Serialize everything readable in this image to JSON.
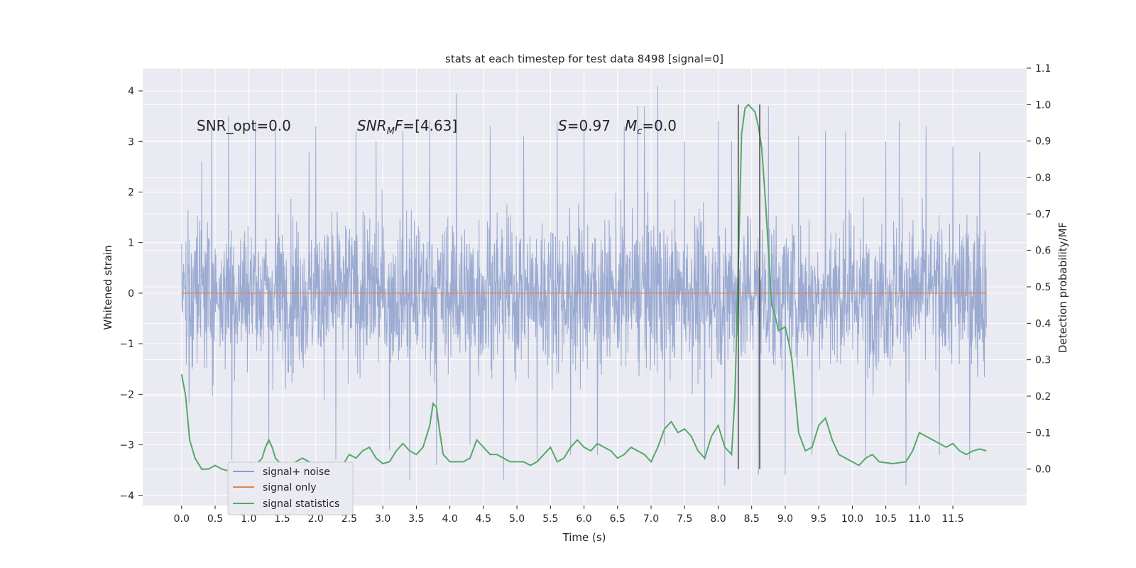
{
  "chart_data": {
    "type": "line",
    "title": "stats at each timestep for test data 8498 [signal=0]",
    "xlabel": "Time (s)",
    "ylabel": "Whitened strain",
    "y2label": "Detection probability/MF",
    "xlim": [
      -0.58,
      12.6
    ],
    "ylim": [
      -4.2,
      4.45
    ],
    "y2lim": [
      -0.1,
      1.1
    ],
    "x_ticks": [
      0.0,
      0.5,
      1.0,
      1.5,
      2.0,
      2.5,
      3.0,
      3.5,
      4.0,
      4.5,
      5.0,
      5.5,
      6.0,
      6.5,
      7.0,
      7.5,
      8.0,
      8.5,
      9.0,
      9.5,
      10.0,
      10.5,
      11.0,
      11.5
    ],
    "x_tick_labels": [
      "0.0",
      "0.5",
      "1.0",
      "1.5",
      "2.0",
      "2.5",
      "3.0",
      "3.5",
      "4.0",
      "4.5",
      "5.0",
      "5.5",
      "6.0",
      "6.5",
      "7.0",
      "7.5",
      "8.0",
      "8.5",
      "9.0",
      "9.5",
      "10.0",
      "10.5",
      "11.0",
      "11.5"
    ],
    "y_ticks": [
      4,
      3,
      2,
      1,
      0,
      -1,
      -2,
      -3,
      -4
    ],
    "y_tick_labels": [
      "4",
      "3",
      "2",
      "1",
      "0",
      "−1",
      "−2",
      "−3",
      "−4"
    ],
    "y2_ticks": [
      1.1,
      1.0,
      0.9,
      0.8,
      0.7,
      0.6,
      0.5,
      0.4,
      0.3,
      0.2,
      0.1,
      0.0
    ],
    "y2_tick_labels": [
      "1.1",
      "1.0",
      "0.9",
      "0.8",
      "0.7",
      "0.6",
      "0.5",
      "0.4",
      "0.3",
      "0.2",
      "0.1",
      "0.0"
    ],
    "grid": true,
    "legend_position": "lower-left",
    "colors": {
      "noise": "#8c9fcb",
      "signal_only": "#dd8452",
      "statistics": "#55a868",
      "vline": "#444444",
      "background": "#eaeaf2"
    },
    "annotations": {
      "snr_opt": "SNR_opt=0.0",
      "snr_mf": "[4.63]",
      "s_value": "=0.97",
      "mc_value": "=0.0"
    },
    "series": [
      {
        "name": "signal+ noise",
        "axis": "left",
        "x_range": [
          0.0,
          12.0
        ],
        "envelope_typical": [
          -1.6,
          1.6
        ],
        "peaks": [
          [
            0.3,
            2.6
          ],
          [
            0.45,
            3.3
          ],
          [
            0.7,
            3.5
          ],
          [
            0.75,
            -3.3
          ],
          [
            1.1,
            3.4
          ],
          [
            1.3,
            -3.0
          ],
          [
            1.4,
            3.3
          ],
          [
            1.9,
            2.8
          ],
          [
            2.0,
            3.3
          ],
          [
            2.3,
            -3.3
          ],
          [
            2.6,
            3.2
          ],
          [
            2.9,
            3.0
          ],
          [
            3.1,
            -3.1
          ],
          [
            3.3,
            3.2
          ],
          [
            3.4,
            -3.7
          ],
          [
            3.7,
            3.4
          ],
          [
            3.8,
            -3.4
          ],
          [
            4.1,
            3.95
          ],
          [
            4.3,
            -3.0
          ],
          [
            4.6,
            3.3
          ],
          [
            4.8,
            -3.7
          ],
          [
            5.1,
            3.1
          ],
          [
            5.3,
            -3.3
          ],
          [
            5.6,
            3.4
          ],
          [
            5.8,
            -3.2
          ],
          [
            6.0,
            3.4
          ],
          [
            6.2,
            -3.2
          ],
          [
            6.6,
            3.3
          ],
          [
            6.8,
            3.7
          ],
          [
            6.9,
            3.7
          ],
          [
            7.1,
            4.1
          ],
          [
            7.2,
            -3.0
          ],
          [
            7.5,
            3.0
          ],
          [
            7.8,
            -3.3
          ],
          [
            8.0,
            3.4
          ],
          [
            8.1,
            -3.8
          ],
          [
            8.2,
            3.0
          ],
          [
            8.6,
            -3.6
          ],
          [
            8.75,
            3.7
          ],
          [
            9.0,
            -3.6
          ],
          [
            9.2,
            3.1
          ],
          [
            9.4,
            -3.2
          ],
          [
            9.6,
            3.2
          ],
          [
            9.9,
            3.2
          ],
          [
            10.2,
            -3.3
          ],
          [
            10.5,
            3.0
          ],
          [
            10.7,
            3.4
          ],
          [
            10.8,
            -3.8
          ],
          [
            11.1,
            3.3
          ],
          [
            11.3,
            -3.2
          ],
          [
            11.5,
            2.9
          ],
          [
            11.75,
            -3.3
          ],
          [
            11.9,
            2.8
          ]
        ]
      },
      {
        "name": "signal only",
        "axis": "left",
        "x": [
          0.0,
          12.0
        ],
        "y": [
          0.0,
          0.0
        ]
      },
      {
        "name": "signal statistics",
        "axis": "right",
        "points": [
          [
            0.0,
            0.26
          ],
          [
            0.06,
            0.2
          ],
          [
            0.12,
            0.08
          ],
          [
            0.2,
            0.03
          ],
          [
            0.3,
            0.0
          ],
          [
            0.4,
            0.0
          ],
          [
            0.5,
            0.01
          ],
          [
            0.6,
            0.0
          ],
          [
            0.7,
            -0.005
          ],
          [
            0.8,
            0.0
          ],
          [
            0.9,
            0.0
          ],
          [
            1.0,
            0.005
          ],
          [
            1.1,
            0.01
          ],
          [
            1.2,
            0.03
          ],
          [
            1.25,
            0.06
          ],
          [
            1.3,
            0.08
          ],
          [
            1.35,
            0.06
          ],
          [
            1.4,
            0.03
          ],
          [
            1.5,
            0.01
          ],
          [
            1.6,
            0.01
          ],
          [
            1.7,
            0.02
          ],
          [
            1.8,
            0.03
          ],
          [
            1.9,
            0.02
          ],
          [
            2.0,
            0.01
          ],
          [
            2.2,
            0.005
          ],
          [
            2.4,
            0.01
          ],
          [
            2.5,
            0.04
          ],
          [
            2.6,
            0.03
          ],
          [
            2.7,
            0.05
          ],
          [
            2.8,
            0.06
          ],
          [
            2.9,
            0.03
          ],
          [
            3.0,
            0.015
          ],
          [
            3.1,
            0.02
          ],
          [
            3.2,
            0.05
          ],
          [
            3.3,
            0.07
          ],
          [
            3.4,
            0.05
          ],
          [
            3.5,
            0.04
          ],
          [
            3.6,
            0.06
          ],
          [
            3.7,
            0.12
          ],
          [
            3.75,
            0.18
          ],
          [
            3.8,
            0.17
          ],
          [
            3.85,
            0.1
          ],
          [
            3.9,
            0.04
          ],
          [
            4.0,
            0.02
          ],
          [
            4.2,
            0.02
          ],
          [
            4.3,
            0.03
          ],
          [
            4.4,
            0.08
          ],
          [
            4.5,
            0.06
          ],
          [
            4.6,
            0.04
          ],
          [
            4.7,
            0.04
          ],
          [
            4.8,
            0.03
          ],
          [
            4.9,
            0.02
          ],
          [
            5.0,
            0.02
          ],
          [
            5.1,
            0.02
          ],
          [
            5.2,
            0.01
          ],
          [
            5.3,
            0.02
          ],
          [
            5.4,
            0.04
          ],
          [
            5.5,
            0.06
          ],
          [
            5.6,
            0.02
          ],
          [
            5.7,
            0.03
          ],
          [
            5.8,
            0.06
          ],
          [
            5.9,
            0.08
          ],
          [
            6.0,
            0.06
          ],
          [
            6.1,
            0.05
          ],
          [
            6.2,
            0.07
          ],
          [
            6.3,
            0.06
          ],
          [
            6.4,
            0.05
          ],
          [
            6.5,
            0.03
          ],
          [
            6.6,
            0.04
          ],
          [
            6.7,
            0.06
          ],
          [
            6.8,
            0.05
          ],
          [
            6.9,
            0.04
          ],
          [
            7.0,
            0.02
          ],
          [
            7.1,
            0.06
          ],
          [
            7.2,
            0.11
          ],
          [
            7.3,
            0.13
          ],
          [
            7.4,
            0.1
          ],
          [
            7.5,
            0.11
          ],
          [
            7.6,
            0.09
          ],
          [
            7.7,
            0.05
          ],
          [
            7.8,
            0.03
          ],
          [
            7.9,
            0.09
          ],
          [
            8.0,
            0.12
          ],
          [
            8.1,
            0.06
          ],
          [
            8.2,
            0.04
          ],
          [
            8.25,
            0.2
          ],
          [
            8.3,
            0.55
          ],
          [
            8.35,
            0.92
          ],
          [
            8.4,
            0.99
          ],
          [
            8.45,
            1.0
          ],
          [
            8.55,
            0.98
          ],
          [
            8.6,
            0.94
          ],
          [
            8.65,
            0.88
          ],
          [
            8.7,
            0.75
          ],
          [
            8.75,
            0.6
          ],
          [
            8.8,
            0.45
          ],
          [
            8.85,
            0.42
          ],
          [
            8.9,
            0.38
          ],
          [
            9.0,
            0.39
          ],
          [
            9.05,
            0.35
          ],
          [
            9.1,
            0.3
          ],
          [
            9.15,
            0.2
          ],
          [
            9.2,
            0.1
          ],
          [
            9.3,
            0.05
          ],
          [
            9.4,
            0.06
          ],
          [
            9.5,
            0.12
          ],
          [
            9.6,
            0.14
          ],
          [
            9.7,
            0.08
          ],
          [
            9.8,
            0.04
          ],
          [
            10.0,
            0.02
          ],
          [
            10.1,
            0.01
          ],
          [
            10.2,
            0.03
          ],
          [
            10.3,
            0.04
          ],
          [
            10.4,
            0.02
          ],
          [
            10.6,
            0.015
          ],
          [
            10.8,
            0.02
          ],
          [
            10.9,
            0.05
          ],
          [
            11.0,
            0.1
          ],
          [
            11.1,
            0.09
          ],
          [
            11.2,
            0.08
          ],
          [
            11.3,
            0.07
          ],
          [
            11.4,
            0.06
          ],
          [
            11.5,
            0.07
          ],
          [
            11.6,
            0.05
          ],
          [
            11.7,
            0.04
          ],
          [
            11.8,
            0.05
          ],
          [
            11.9,
            0.055
          ],
          [
            12.0,
            0.05
          ]
        ]
      }
    ],
    "vlines": [
      8.3,
      8.62
    ]
  }
}
